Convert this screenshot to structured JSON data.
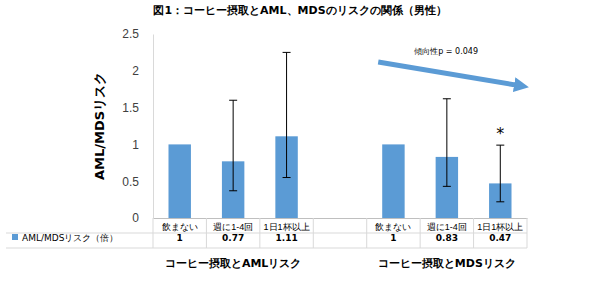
{
  "chart_data": {
    "type": "bar",
    "title": "図1：コーヒー摂取とAML、MDSのリスクの関係（男性）",
    "y_label": "AML/MDSリスク",
    "categories": [
      "飲まない",
      "週に1-4回",
      "1日1杯以上",
      null,
      "飲まない",
      "週に1-4回",
      "1日1杯以上"
    ],
    "group_labels": [
      "コーヒー摂取とAMLリスク",
      "コーヒー摂取とMDSリスク"
    ],
    "series": [
      {
        "name": "AML/MDSリスク（倍）",
        "color": "#5b9bd5",
        "values": [
          1,
          0.77,
          1.11,
          null,
          1,
          0.83,
          0.47
        ],
        "ci_low": [
          null,
          0.37,
          0.55,
          null,
          null,
          0.43,
          0.22
        ],
        "ci_high": [
          null,
          1.6,
          2.25,
          null,
          null,
          1.62,
          0.99
        ]
      }
    ],
    "ylim": [
      0,
      2.5
    ],
    "yticks": [
      0,
      0.5,
      1,
      1.5,
      2,
      2.5
    ],
    "grid": false,
    "annotations": [
      {
        "text": "傾向性p = 0.049",
        "group": 1
      },
      {
        "text": "*",
        "category": 6
      }
    ]
  }
}
